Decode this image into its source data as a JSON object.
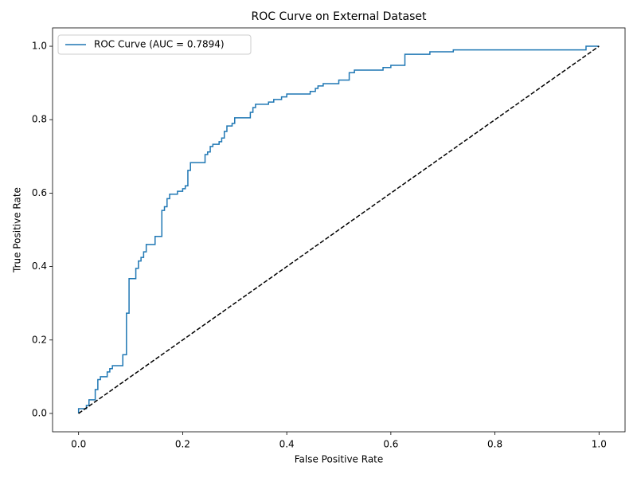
{
  "chart_data": {
    "type": "line",
    "title": "ROC Curve on External Dataset",
    "xlabel": "False Positive Rate",
    "ylabel": "True Positive Rate",
    "xlim": [
      -0.05,
      1.05
    ],
    "ylim": [
      -0.05,
      1.05
    ],
    "xticks": [
      {
        "value": 0,
        "label": "0.0"
      },
      {
        "value": 0.2,
        "label": "0.2"
      },
      {
        "value": 0.4,
        "label": "0.4"
      },
      {
        "value": 0.6,
        "label": "0.6"
      },
      {
        "value": 0.8,
        "label": "0.8"
      },
      {
        "value": 1,
        "label": "1.0"
      }
    ],
    "yticks": [
      {
        "value": 0,
        "label": "0.0"
      },
      {
        "value": 0.2,
        "label": "0.2"
      },
      {
        "value": 0.4,
        "label": "0.4"
      },
      {
        "value": 0.6,
        "label": "0.6"
      },
      {
        "value": 0.8,
        "label": "0.8"
      },
      {
        "value": 1,
        "label": "1.0"
      }
    ],
    "grid": false,
    "legend": "upper left",
    "series": [
      {
        "name": "ROC Curve (AUC = 0.7894)",
        "color": "#1f77b4",
        "linestyle": "solid",
        "x": [
          0,
          0,
          0.015,
          0.015,
          0.02,
          0.02,
          0.032,
          0.032,
          0.037,
          0.037,
          0.042,
          0.042,
          0.055,
          0.055,
          0.06,
          0.06,
          0.065,
          0.065,
          0.085,
          0.085,
          0.092,
          0.092,
          0.097,
          0.097,
          0.11,
          0.11,
          0.115,
          0.115,
          0.12,
          0.12,
          0.125,
          0.125,
          0.13,
          0.13,
          0.147,
          0.147,
          0.16,
          0.16,
          0.165,
          0.165,
          0.17,
          0.17,
          0.175,
          0.175,
          0.19,
          0.19,
          0.2,
          0.2,
          0.205,
          0.205,
          0.21,
          0.21,
          0.215,
          0.215,
          0.243,
          0.243,
          0.248,
          0.248,
          0.253,
          0.253,
          0.258,
          0.258,
          0.27,
          0.27,
          0.275,
          0.275,
          0.28,
          0.28,
          0.285,
          0.285,
          0.295,
          0.295,
          0.3,
          0.3,
          0.33,
          0.33,
          0.335,
          0.335,
          0.34,
          0.34,
          0.365,
          0.365,
          0.375,
          0.375,
          0.39,
          0.39,
          0.4,
          0.4,
          0.445,
          0.445,
          0.455,
          0.455,
          0.46,
          0.46,
          0.47,
          0.47,
          0.5,
          0.5,
          0.52,
          0.52,
          0.53,
          0.53,
          0.585,
          0.585,
          0.6,
          0.6,
          0.627,
          0.627,
          0.675,
          0.675,
          0.72,
          0.72,
          0.975,
          0.975,
          1
        ],
        "values": [
          0,
          0.013,
          0.013,
          0.022,
          0.022,
          0.037,
          0.037,
          0.065,
          0.065,
          0.092,
          0.092,
          0.1,
          0.1,
          0.113,
          0.113,
          0.122,
          0.122,
          0.13,
          0.13,
          0.16,
          0.16,
          0.273,
          0.273,
          0.367,
          0.367,
          0.395,
          0.395,
          0.415,
          0.415,
          0.425,
          0.425,
          0.44,
          0.44,
          0.46,
          0.46,
          0.482,
          0.482,
          0.553,
          0.553,
          0.563,
          0.563,
          0.585,
          0.585,
          0.597,
          0.597,
          0.605,
          0.605,
          0.612,
          0.612,
          0.62,
          0.62,
          0.662,
          0.662,
          0.683,
          0.683,
          0.705,
          0.705,
          0.712,
          0.712,
          0.727,
          0.727,
          0.733,
          0.733,
          0.74,
          0.74,
          0.75,
          0.75,
          0.768,
          0.768,
          0.783,
          0.783,
          0.79,
          0.79,
          0.805,
          0.805,
          0.82,
          0.82,
          0.833,
          0.833,
          0.842,
          0.842,
          0.848,
          0.848,
          0.855,
          0.855,
          0.862,
          0.862,
          0.87,
          0.87,
          0.877,
          0.877,
          0.885,
          0.885,
          0.892,
          0.892,
          0.898,
          0.898,
          0.908,
          0.908,
          0.928,
          0.928,
          0.935,
          0.935,
          0.942,
          0.942,
          0.948,
          0.948,
          0.978,
          0.978,
          0.985,
          0.985,
          0.99,
          0.99,
          1,
          1
        ]
      },
      {
        "color": "#000000",
        "linestyle": "dashed",
        "x": [
          0,
          1
        ],
        "values": [
          0,
          1
        ]
      }
    ]
  }
}
